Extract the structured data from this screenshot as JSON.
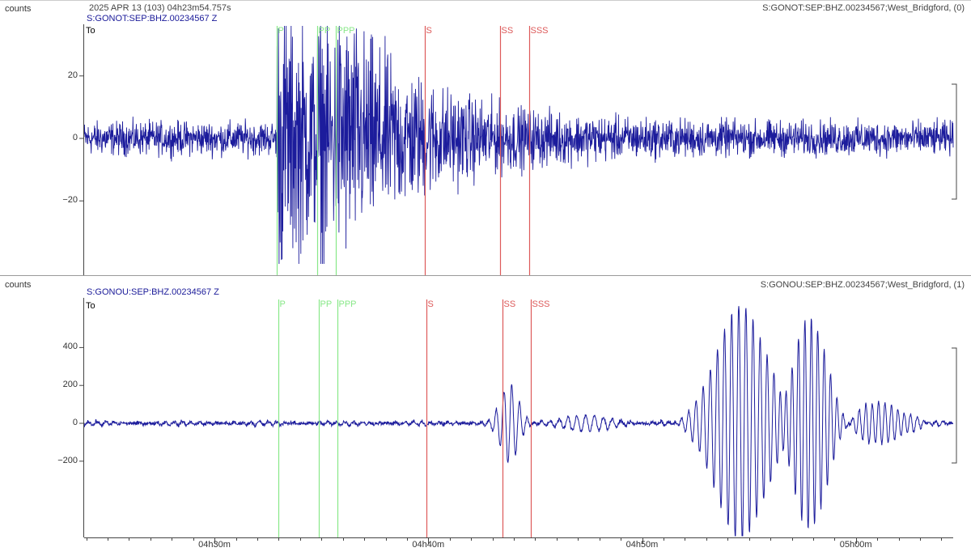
{
  "header": {
    "datetime": "2025 APR 13 (103)  04h23m54.757s"
  },
  "colors": {
    "trace": "#1c1c9c",
    "p_picks": "#88e888",
    "s_picks": "#dd5a5a",
    "axis": "#444444",
    "separator": "#999999"
  },
  "chart_data": [
    {
      "type": "line",
      "units_label": "counts",
      "channel": "S:GONOT:SEP:BHZ.00234567 Z",
      "station_info": "S:GONOT:SEP:BHZ.00234567;West_Bridgford, (0)",
      "origin_label": "To",
      "y_ticks": [
        20,
        0,
        -20
      ],
      "ylim": [
        -41,
        36
      ],
      "envelope": {
        "x_min": [
          4,
          24,
          55
        ],
        "noise_amplitude": 4,
        "segments": [
          {
            "start": 32.9,
            "peak": 30,
            "decay_min": 4.5
          },
          {
            "start": 34.8,
            "peak": 8,
            "decay_min": 3.5
          },
          {
            "start": 35.7,
            "peak": 6,
            "decay_min": 3.5
          }
        ]
      },
      "phases": [
        {
          "label": "P",
          "time": "04:32:54",
          "kind": "p"
        },
        {
          "label": "PP",
          "time": "04:34:48",
          "kind": "p"
        },
        {
          "label": "PPP",
          "time": "04:35:40",
          "kind": "p"
        },
        {
          "label": "S",
          "time": "04:39:50",
          "kind": "s"
        },
        {
          "label": "SS",
          "time": "04:43:22",
          "kind": "s"
        },
        {
          "label": "SSS",
          "time": "04:44:42",
          "kind": "s"
        }
      ]
    },
    {
      "type": "line",
      "units_label": "counts",
      "channel": "S:GONOU:SEP:BHZ.00234567 Z",
      "station_info": "S:GONOU:SEP:BHZ.00234567;West_Bridgford, (1)",
      "origin_label": "To",
      "y_ticks": [
        400,
        200,
        0,
        -200
      ],
      "ylim": [
        -620,
        680
      ],
      "wave_packets": [
        {
          "center_min": 43.8,
          "width_min": 0.6,
          "amplitude": 220,
          "period_s": 22
        },
        {
          "center_min": 47.5,
          "width_min": 1.6,
          "amplitude": 40,
          "period_s": 25
        },
        {
          "center_min": 54.6,
          "width_min": 1.6,
          "amplitude": 620,
          "period_s": 20
        },
        {
          "center_min": 57.8,
          "width_min": 1.2,
          "amplitude": 560,
          "period_s": 18
        },
        {
          "center_min": 61.0,
          "width_min": 1.6,
          "amplitude": 110,
          "period_s": 18
        }
      ],
      "phases": [
        {
          "label": "P",
          "time": "04:32:58",
          "kind": "p"
        },
        {
          "label": "PP",
          "time": "04:34:52",
          "kind": "p"
        },
        {
          "label": "PPP",
          "time": "04:35:44",
          "kind": "p"
        },
        {
          "label": "S",
          "time": "04:39:55",
          "kind": "s"
        },
        {
          "label": "SS",
          "time": "04:43:27",
          "kind": "s"
        },
        {
          "label": "SSS",
          "time": "04:44:48",
          "kind": "s"
        }
      ]
    }
  ],
  "x_axis": {
    "start": "04:23:54",
    "end": "05:04:33",
    "ticks": [
      {
        "label": "04h30m",
        "time": "04:30:00"
      },
      {
        "label": "04h40m",
        "time": "04:40:00"
      },
      {
        "label": "04h50m",
        "time": "04:50:00"
      },
      {
        "label": "05h00m",
        "time": "05:00:00"
      }
    ]
  }
}
